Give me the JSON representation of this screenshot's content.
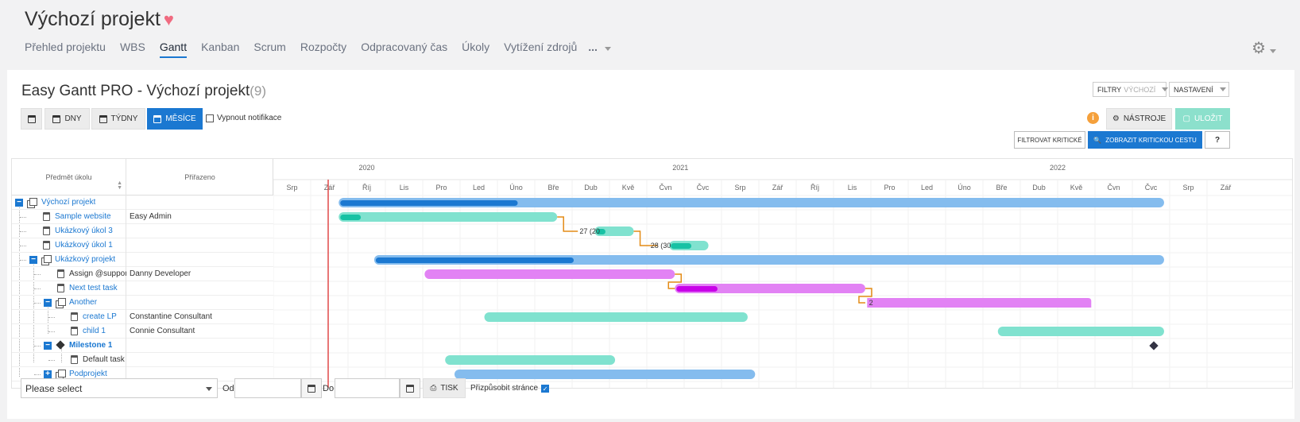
{
  "project": {
    "title": "Výchozí projekt",
    "heart_icon": "heart-icon"
  },
  "nav": {
    "items": [
      "Přehled projektu",
      "WBS",
      "Gantt",
      "Kanban",
      "Scrum",
      "Rozpočty",
      "Odpracovaný čas",
      "Úkoly",
      "Vytížení zdrojů"
    ],
    "active": "Gantt",
    "more": "..."
  },
  "gantt": {
    "title": "Easy Gantt PRO - Výchozí projekt",
    "count": "(9)",
    "filters_label": "FILTRY",
    "filters_value": "VÝCHOZÍ",
    "settings_label": "NASTAVENÍ",
    "scale_buttons": {
      "days": "DNY",
      "weeks": "TÝDNY",
      "months": "MĚSÍCE"
    },
    "disable_notifications": "Vypnout notifikace",
    "tools": "NÁSTROJE",
    "save": "ULOŽIT",
    "filter_critical": "FILTROVAT KRITICKÉ",
    "show_critical_path": "ZOBRAZIT KRITICKOU CESTU",
    "help": "?",
    "info": "i",
    "columns": {
      "subject": "Předmět úkolu",
      "assigned": "Přiřazeno"
    },
    "years": [
      "2020",
      "2021",
      "2022"
    ],
    "months": [
      "Srp",
      "Zář",
      "Říj",
      "Lis",
      "Pro",
      "Led",
      "Úno",
      "Bře",
      "Dub",
      "Kvě",
      "Čvn",
      "Čvc",
      "Srp",
      "Zář",
      "Říj",
      "Lis",
      "Pro",
      "Led",
      "Úno",
      "Bře",
      "Dub",
      "Kvě",
      "Čvn",
      "Čvc",
      "Srp",
      "Zář"
    ],
    "rows": [
      {
        "name": "Výchozí projekt",
        "assigned": ""
      },
      {
        "name": "Sample website",
        "assigned": "Easy Admin"
      },
      {
        "name": "Ukázkový úkol 3",
        "assigned": ""
      },
      {
        "name": "Ukázkový úkol 1",
        "assigned": ""
      },
      {
        "name": "Ukázkový projekt",
        "assigned": ""
      },
      {
        "name": "Assign @support",
        "assigned": "Danny Developer"
      },
      {
        "name": "Next test task",
        "assigned": ""
      },
      {
        "name": "Another",
        "assigned": ""
      },
      {
        "name": "create LP",
        "assigned": "Constantine Consultant"
      },
      {
        "name": "child 1",
        "assigned": "Connie Consultant"
      },
      {
        "name": "Milestone 1",
        "assigned": ""
      },
      {
        "name": "Default task",
        "assigned": ""
      },
      {
        "name": "Podprojekt",
        "assigned": ""
      }
    ],
    "link_labels": [
      "27 (20",
      "28 (30",
      "2"
    ],
    "colors": {
      "project": "#84bcee",
      "project_progress": "#1b78d1",
      "task": "#80e2cf",
      "task_progress": "#17c2a4",
      "critical": "#e282f4",
      "critical_progress": "#c800e8",
      "relation": "#e38b16",
      "today": "#e04848"
    }
  },
  "footer": {
    "select_placeholder": "Please select",
    "from": "Od",
    "to": "Do",
    "print": "TISK",
    "fit_page": "Přizpůsobit stránce"
  }
}
